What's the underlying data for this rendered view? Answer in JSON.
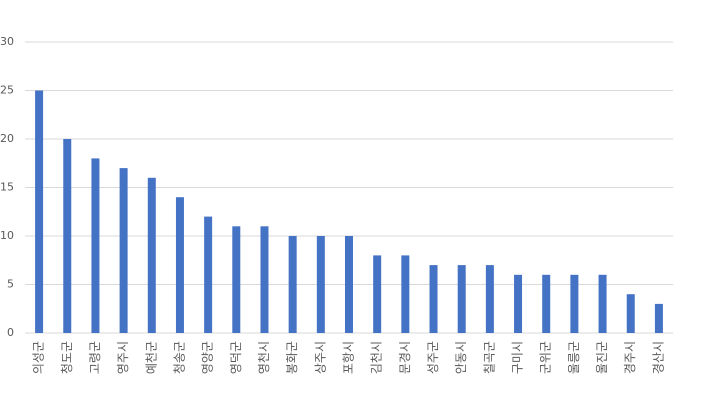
{
  "chart_data": {
    "type": "bar",
    "categories": [
      "의성군",
      "청도군",
      "고령군",
      "영주시",
      "예천군",
      "청송군",
      "영양군",
      "영덕군",
      "영천시",
      "봉화군",
      "상주시",
      "포항시",
      "김천시",
      "문경시",
      "성주군",
      "안동시",
      "칠곡군",
      "구미시",
      "군위군",
      "울릉군",
      "울진군",
      "경주시",
      "경산시"
    ],
    "values": [
      25,
      20,
      18,
      17,
      16,
      14,
      12,
      11,
      11,
      10,
      10,
      10,
      8,
      8,
      7,
      7,
      7,
      6,
      6,
      6,
      6,
      4,
      3
    ],
    "color": "#4472c4",
    "ylim": [
      0,
      30
    ],
    "yticks": [
      0,
      5,
      10,
      15,
      20,
      25,
      30
    ],
    "grid": true
  }
}
